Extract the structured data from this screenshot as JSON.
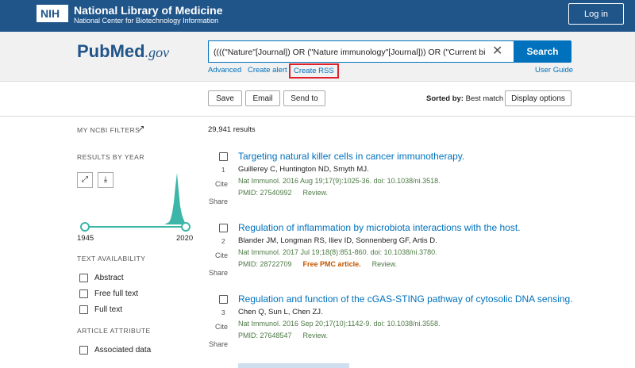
{
  "header": {
    "logo": "NIH",
    "org": "National Library of Medicine",
    "sub": "National Center for Biotechnology Information",
    "login": "Log in"
  },
  "search": {
    "logo_pub": "Pub",
    "logo_med": "Med",
    "logo_gov": ".gov",
    "query": "((((\"Nature\"[Journal]) OR (\"Nature immunology\"[Journal])) OR (\"Current bi",
    "button": "Search",
    "links": [
      "Advanced",
      "Create alert",
      "Create RSS"
    ],
    "user_guide": "User Guide"
  },
  "toolbar": {
    "buttons": [
      "Save",
      "Email",
      "Send to"
    ],
    "sort_label": "Sorted by:",
    "sort_value": "Best match",
    "display": "Display options"
  },
  "sidebar": {
    "my_filters": "MY NCBI FILTERS",
    "results_by_year": "RESULTS BY YEAR",
    "year_start": "1945",
    "year_end": "2020",
    "text_availability": "TEXT AVAILABILITY",
    "filters": [
      "Abstract",
      "Free full text",
      "Full text"
    ],
    "article_attribute": "ARTICLE ATTRIBUTE",
    "attribute_filters": [
      "Associated data"
    ]
  },
  "results": {
    "count": "29,941 results",
    "cite": "Cite",
    "share": "Share",
    "items": [
      {
        "number": "1",
        "title": "Targeting natural killer cells in cancer immunotherapy.",
        "authors": "Guillerey C, Huntington ND, Smyth MJ.",
        "citation": "Nat Immunol. 2016 Aug 19;17(9):1025-36. doi: 10.1038/ni.3518.",
        "pmid": "PMID: 27540992",
        "tags": [
          "Review."
        ]
      },
      {
        "number": "2",
        "title": "Regulation of inflammation by microbiota interactions with the host.",
        "authors": "Blander JM, Longman RS, Iliev ID, Sonnenberg GF, Artis D.",
        "citation": "Nat Immunol. 2017 Jul 19;18(8):851-860. doi: 10.1038/ni.3780.",
        "pmid": "PMID: 28722709",
        "free": "Free PMC article.",
        "tags": [
          "Review."
        ]
      },
      {
        "number": "3",
        "title": "Regulation and function of the cGAS-STING pathway of cytosolic DNA sensing.",
        "authors": "Chen Q, Sun L, Chen ZJ.",
        "citation": "Nat Immunol. 2016 Sep 20;17(10):1142-9. doi: 10.1038/ni.3558.",
        "pmid": "PMID: 27648547",
        "tags": [
          "Review."
        ]
      }
    ]
  }
}
